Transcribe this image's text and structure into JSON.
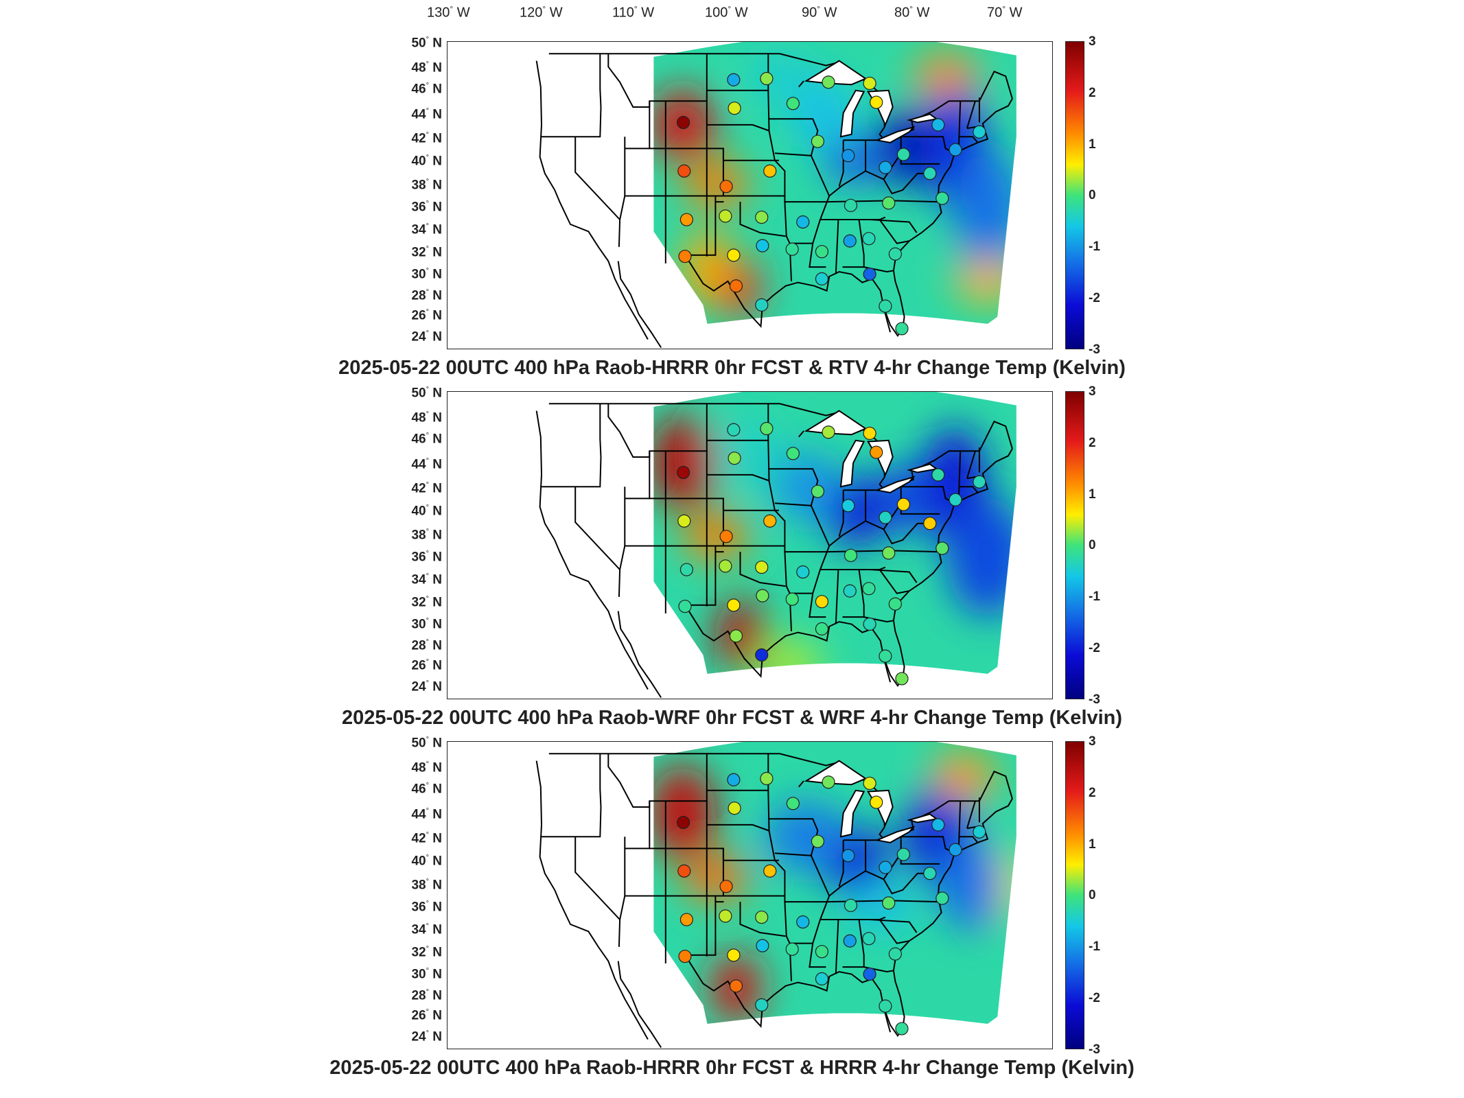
{
  "longitude_labels": [
    {
      "deg": "130",
      "dir": "W"
    },
    {
      "deg": "120",
      "dir": "W"
    },
    {
      "deg": "110",
      "dir": "W"
    },
    {
      "deg": "100",
      "dir": "W"
    },
    {
      "deg": "90",
      "dir": "W"
    },
    {
      "deg": "80",
      "dir": "W"
    },
    {
      "deg": "70",
      "dir": "W"
    }
  ],
  "latitude_labels": [
    {
      "deg": "50",
      "dir": "N"
    },
    {
      "deg": "48",
      "dir": "N"
    },
    {
      "deg": "46",
      "dir": "N"
    },
    {
      "deg": "44",
      "dir": "N"
    },
    {
      "deg": "42",
      "dir": "N"
    },
    {
      "deg": "40",
      "dir": "N"
    },
    {
      "deg": "38",
      "dir": "N"
    },
    {
      "deg": "36",
      "dir": "N"
    },
    {
      "deg": "34",
      "dir": "N"
    },
    {
      "deg": "32",
      "dir": "N"
    },
    {
      "deg": "30",
      "dir": "N"
    },
    {
      "deg": "28",
      "dir": "N"
    },
    {
      "deg": "26",
      "dir": "N"
    },
    {
      "deg": "24",
      "dir": "N"
    }
  ],
  "colorbar": {
    "ticks": [
      "3",
      "2",
      "1",
      "0",
      "-1",
      "-2",
      "-3"
    ],
    "range": [
      -3,
      3
    ],
    "colors": [
      "#7f0000",
      "#e41a1a",
      "#ff8c00",
      "#ffee00",
      "#3ee37b",
      "#14c8e6",
      "#1471e6",
      "#0b0bd6",
      "#000080"
    ]
  },
  "panels": [
    {
      "caption": "2025-05-22 00UTC 400 hPa Raob-HRRR 0hr FCST & RTV 4-hr Change Temp (Kelvin)",
      "stations": [
        {
          "lon": -106.9,
          "lat": 43.2,
          "value": 2.9
        },
        {
          "lon": -106.8,
          "lat": 39.1,
          "value": 1.9
        },
        {
          "lon": -106.5,
          "lat": 35.0,
          "value": 1.4
        },
        {
          "lon": -106.7,
          "lat": 31.9,
          "value": 1.6
        },
        {
          "lon": -100.8,
          "lat": 32.0,
          "value": 0.8
        },
        {
          "lon": -101.7,
          "lat": 37.8,
          "value": 1.7
        },
        {
          "lon": -96.4,
          "lat": 39.1,
          "value": 1.1
        },
        {
          "lon": -100.7,
          "lat": 44.4,
          "value": 0.6
        },
        {
          "lon": -100.8,
          "lat": 46.8,
          "value": -1.0
        },
        {
          "lon": -96.8,
          "lat": 46.9,
          "value": 0.3
        },
        {
          "lon": -93.6,
          "lat": 44.8,
          "value": 0.0
        },
        {
          "lon": -89.3,
          "lat": 46.6,
          "value": 0.2
        },
        {
          "lon": -84.3,
          "lat": 46.5,
          "value": 0.6
        },
        {
          "lon": -83.5,
          "lat": 44.9,
          "value": 0.8
        },
        {
          "lon": -90.6,
          "lat": 41.6,
          "value": 0.2
        },
        {
          "lon": -86.9,
          "lat": 40.4,
          "value": -1.2
        },
        {
          "lon": -82.4,
          "lat": 39.4,
          "value": -1.0
        },
        {
          "lon": -80.2,
          "lat": 40.5,
          "value": -0.3
        },
        {
          "lon": -77.0,
          "lat": 38.9,
          "value": -0.4
        },
        {
          "lon": -75.5,
          "lat": 36.8,
          "value": -0.2
        },
        {
          "lon": -82.0,
          "lat": 36.4,
          "value": 0.1
        },
        {
          "lon": -86.6,
          "lat": 36.2,
          "value": -0.3
        },
        {
          "lon": -92.4,
          "lat": 34.8,
          "value": -0.9
        },
        {
          "lon": -97.4,
          "lat": 35.2,
          "value": 0.3
        },
        {
          "lon": -101.8,
          "lat": 35.3,
          "value": 0.5
        },
        {
          "lon": -97.3,
          "lat": 32.8,
          "value": -0.8
        },
        {
          "lon": -93.7,
          "lat": 32.5,
          "value": -0.2
        },
        {
          "lon": -90.1,
          "lat": 32.3,
          "value": -0.1
        },
        {
          "lon": -86.7,
          "lat": 33.2,
          "value": -1.1
        },
        {
          "lon": -84.4,
          "lat": 33.4,
          "value": -0.4
        },
        {
          "lon": -81.2,
          "lat": 32.1,
          "value": -0.3
        },
        {
          "lon": -84.3,
          "lat": 30.4,
          "value": -1.6
        },
        {
          "lon": -90.1,
          "lat": 30.0,
          "value": -0.6
        },
        {
          "lon": -97.4,
          "lat": 27.8,
          "value": -0.5
        },
        {
          "lon": -100.5,
          "lat": 29.4,
          "value": 1.7
        },
        {
          "lon": -80.4,
          "lat": 25.8,
          "value": -0.2
        },
        {
          "lon": -82.4,
          "lat": 27.7,
          "value": -0.3
        },
        {
          "lon": -73.9,
          "lat": 40.9,
          "value": -1.1
        },
        {
          "lon": -71.0,
          "lat": 42.4,
          "value": -0.6
        },
        {
          "lon": -76.0,
          "lat": 43.0,
          "value": -0.9
        }
      ]
    },
    {
      "caption": "2025-05-22 00UTC 400 hPa Raob-WRF 0hr FCST & WRF 4-hr Change Temp (Kelvin)",
      "stations": [
        {
          "lon": -106.9,
          "lat": 43.2,
          "value": 2.8
        },
        {
          "lon": -106.8,
          "lat": 39.1,
          "value": 0.6
        },
        {
          "lon": -106.5,
          "lat": 35.0,
          "value": -0.3
        },
        {
          "lon": -106.7,
          "lat": 31.9,
          "value": -0.2
        },
        {
          "lon": -100.8,
          "lat": 32.0,
          "value": 0.8
        },
        {
          "lon": -101.7,
          "lat": 37.8,
          "value": 1.6
        },
        {
          "lon": -96.4,
          "lat": 39.1,
          "value": 1.2
        },
        {
          "lon": -100.7,
          "lat": 44.4,
          "value": 0.3
        },
        {
          "lon": -100.8,
          "lat": 46.8,
          "value": -0.4
        },
        {
          "lon": -96.8,
          "lat": 46.9,
          "value": 0.1
        },
        {
          "lon": -93.6,
          "lat": 44.8,
          "value": 0.0
        },
        {
          "lon": -89.3,
          "lat": 46.6,
          "value": 0.4
        },
        {
          "lon": -84.3,
          "lat": 46.5,
          "value": 0.9
        },
        {
          "lon": -83.5,
          "lat": 44.9,
          "value": 1.4
        },
        {
          "lon": -90.6,
          "lat": 41.6,
          "value": 0.1
        },
        {
          "lon": -86.9,
          "lat": 40.4,
          "value": -0.7
        },
        {
          "lon": -82.4,
          "lat": 39.4,
          "value": -0.5
        },
        {
          "lon": -80.2,
          "lat": 40.5,
          "value": 0.9
        },
        {
          "lon": -77.0,
          "lat": 38.9,
          "value": 1.0
        },
        {
          "lon": -75.5,
          "lat": 36.8,
          "value": 0.1
        },
        {
          "lon": -82.0,
          "lat": 36.4,
          "value": 0.2
        },
        {
          "lon": -86.6,
          "lat": 36.2,
          "value": 0.0
        },
        {
          "lon": -92.4,
          "lat": 34.8,
          "value": -0.6
        },
        {
          "lon": -97.4,
          "lat": 35.2,
          "value": 0.6
        },
        {
          "lon": -101.8,
          "lat": 35.3,
          "value": 0.4
        },
        {
          "lon": -97.3,
          "lat": 32.8,
          "value": 0.2
        },
        {
          "lon": -93.7,
          "lat": 32.5,
          "value": 0.0
        },
        {
          "lon": -90.1,
          "lat": 32.3,
          "value": 0.9
        },
        {
          "lon": -86.7,
          "lat": 33.2,
          "value": -0.5
        },
        {
          "lon": -84.4,
          "lat": 33.4,
          "value": -0.2
        },
        {
          "lon": -81.2,
          "lat": 32.1,
          "value": -0.1
        },
        {
          "lon": -84.3,
          "lat": 30.4,
          "value": -0.4
        },
        {
          "lon": -90.1,
          "lat": 30.0,
          "value": -0.1
        },
        {
          "lon": -97.4,
          "lat": 27.8,
          "value": -2.0
        },
        {
          "lon": -100.5,
          "lat": 29.4,
          "value": 0.3
        },
        {
          "lon": -80.4,
          "lat": 25.8,
          "value": 0.2
        },
        {
          "lon": -82.4,
          "lat": 27.7,
          "value": -0.2
        },
        {
          "lon": -73.9,
          "lat": 40.9,
          "value": -0.5
        },
        {
          "lon": -71.0,
          "lat": 42.4,
          "value": -0.4
        },
        {
          "lon": -76.0,
          "lat": 43.0,
          "value": -0.3
        }
      ]
    },
    {
      "caption": "2025-05-22 00UTC 400 hPa Raob-HRRR 0hr FCST & HRRR 4-hr Change Temp (Kelvin)",
      "stations": [
        {
          "lon": -106.9,
          "lat": 43.2,
          "value": 2.9
        },
        {
          "lon": -106.8,
          "lat": 39.1,
          "value": 1.9
        },
        {
          "lon": -106.5,
          "lat": 35.0,
          "value": 1.4
        },
        {
          "lon": -106.7,
          "lat": 31.9,
          "value": 1.6
        },
        {
          "lon": -100.8,
          "lat": 32.0,
          "value": 0.8
        },
        {
          "lon": -101.7,
          "lat": 37.8,
          "value": 1.7
        },
        {
          "lon": -96.4,
          "lat": 39.1,
          "value": 1.1
        },
        {
          "lon": -100.7,
          "lat": 44.4,
          "value": 0.6
        },
        {
          "lon": -100.8,
          "lat": 46.8,
          "value": -1.0
        },
        {
          "lon": -96.8,
          "lat": 46.9,
          "value": 0.3
        },
        {
          "lon": -93.6,
          "lat": 44.8,
          "value": 0.0
        },
        {
          "lon": -89.3,
          "lat": 46.6,
          "value": 0.2
        },
        {
          "lon": -84.3,
          "lat": 46.5,
          "value": 0.6
        },
        {
          "lon": -83.5,
          "lat": 44.9,
          "value": 0.8
        },
        {
          "lon": -90.6,
          "lat": 41.6,
          "value": 0.2
        },
        {
          "lon": -86.9,
          "lat": 40.4,
          "value": -1.2
        },
        {
          "lon": -82.4,
          "lat": 39.4,
          "value": -1.0
        },
        {
          "lon": -80.2,
          "lat": 40.5,
          "value": -0.3
        },
        {
          "lon": -77.0,
          "lat": 38.9,
          "value": -0.4
        },
        {
          "lon": -75.5,
          "lat": 36.8,
          "value": -0.2
        },
        {
          "lon": -82.0,
          "lat": 36.4,
          "value": 0.1
        },
        {
          "lon": -86.6,
          "lat": 36.2,
          "value": -0.3
        },
        {
          "lon": -92.4,
          "lat": 34.8,
          "value": -0.9
        },
        {
          "lon": -97.4,
          "lat": 35.2,
          "value": 0.3
        },
        {
          "lon": -101.8,
          "lat": 35.3,
          "value": 0.5
        },
        {
          "lon": -97.3,
          "lat": 32.8,
          "value": -0.8
        },
        {
          "lon": -93.7,
          "lat": 32.5,
          "value": -0.2
        },
        {
          "lon": -90.1,
          "lat": 32.3,
          "value": -0.1
        },
        {
          "lon": -86.7,
          "lat": 33.2,
          "value": -1.1
        },
        {
          "lon": -84.4,
          "lat": 33.4,
          "value": -0.4
        },
        {
          "lon": -81.2,
          "lat": 32.1,
          "value": -0.3
        },
        {
          "lon": -84.3,
          "lat": 30.4,
          "value": -1.6
        },
        {
          "lon": -90.1,
          "lat": 30.0,
          "value": -0.6
        },
        {
          "lon": -97.4,
          "lat": 27.8,
          "value": -0.5
        },
        {
          "lon": -100.5,
          "lat": 29.4,
          "value": 1.7
        },
        {
          "lon": -80.4,
          "lat": 25.8,
          "value": -0.2
        },
        {
          "lon": -82.4,
          "lat": 27.7,
          "value": -0.3
        },
        {
          "lon": -73.9,
          "lat": 40.9,
          "value": -1.1
        },
        {
          "lon": -71.0,
          "lat": 42.4,
          "value": -0.6
        },
        {
          "lon": -76.0,
          "lat": 43.0,
          "value": -0.9
        }
      ]
    }
  ]
}
